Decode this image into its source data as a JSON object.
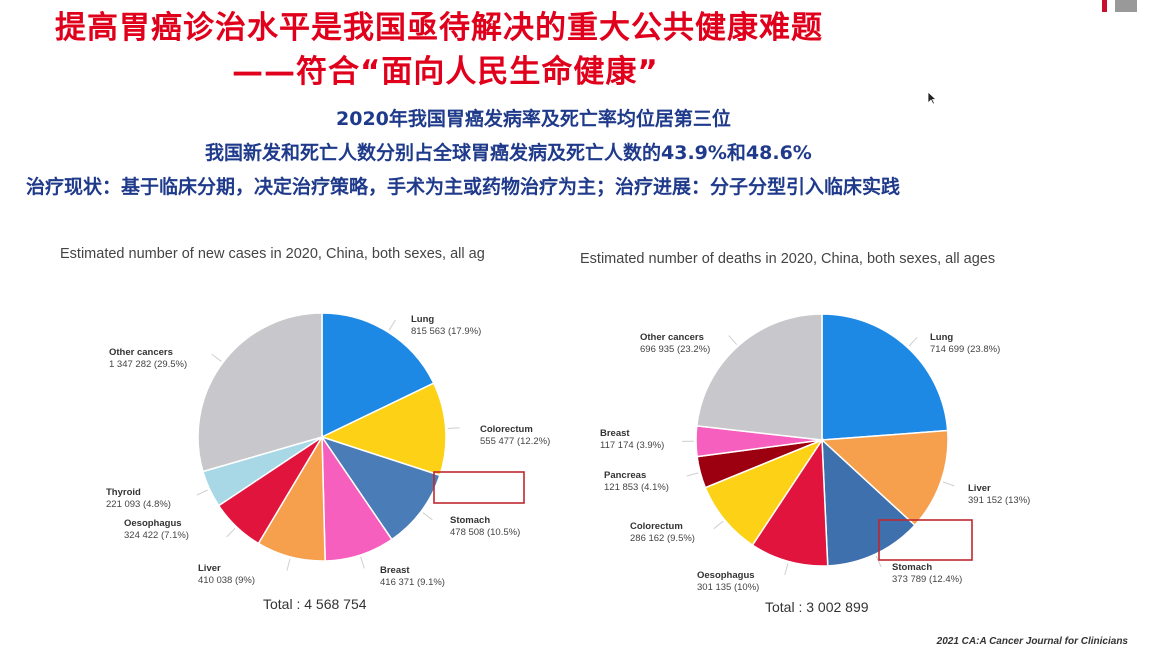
{
  "slide": {
    "title_line1": "提高胃癌诊治水平是我国亟待解决的重大公共健康难题",
    "title_line2": "——符合“面向人民生命健康”",
    "subtitle1": "2020年我国胃癌发病率及死亡率均位居第三位",
    "subtitle2": "我国新发和死亡人数分别占全球胃癌发病及死亡人数的43.9%和48.6%",
    "subtitle3": "治疗现状：基于临床分期，决定治疗策略，手术为主或药物治疗为主；治疗进展：分子分型引入临床实践",
    "source": "2021 CA:A Cancer Journal for Clinicians",
    "logo_colors": [
      "#c8102e",
      "#999999"
    ]
  },
  "chart_data": [
    {
      "type": "pie",
      "title": "Estimated number of new cases in 2020, China, both sexes, all ag",
      "total_label": "Total : 4 568 754",
      "highlight": "Stomach",
      "slices": [
        {
          "name": "Lung",
          "value_label": "815 563 (17.9%)",
          "value": 815563,
          "percent": 17.9,
          "color": "#1e88e5"
        },
        {
          "name": "Colorectum",
          "value_label": "555 477 (12.2%)",
          "value": 555477,
          "percent": 12.2,
          "color": "#fcd116"
        },
        {
          "name": "Stomach",
          "value_label": "478 508 (10.5%)",
          "value": 478508,
          "percent": 10.5,
          "color": "#4a7db8"
        },
        {
          "name": "Breast",
          "value_label": "416 371 (9.1%)",
          "value": 416371,
          "percent": 9.1,
          "color": "#f75fbf"
        },
        {
          "name": "Liver",
          "value_label": "410 038 (9%)",
          "value": 410038,
          "percent": 9.0,
          "color": "#f6a04d"
        },
        {
          "name": "Oesophagus",
          "value_label": "324 422 (7.1%)",
          "value": 324422,
          "percent": 7.1,
          "color": "#e0143c"
        },
        {
          "name": "Thyroid",
          "value_label": "221 093 (4.8%)",
          "value": 221093,
          "percent": 4.8,
          "color": "#a8d8e6"
        },
        {
          "name": "Other cancers",
          "value_label": "1 347 282 (29.5%)",
          "value": 1347282,
          "percent": 29.5,
          "color": "#c8c8cc"
        }
      ]
    },
    {
      "type": "pie",
      "title": "Estimated number of deaths in 2020, China, both sexes, all ages",
      "total_label": "Total : 3 002 899",
      "highlight": "Stomach",
      "slices": [
        {
          "name": "Lung",
          "value_label": "714 699 (23.8%)",
          "value": 714699,
          "percent": 23.8,
          "color": "#1e88e5"
        },
        {
          "name": "Liver",
          "value_label": "391 152 (13%)",
          "value": 391152,
          "percent": 13.0,
          "color": "#f6a04d"
        },
        {
          "name": "Stomach",
          "value_label": "373 789 (12.4%)",
          "value": 373789,
          "percent": 12.4,
          "color": "#3d70ad"
        },
        {
          "name": "Oesophagus",
          "value_label": "301 135 (10%)",
          "value": 301135,
          "percent": 10.0,
          "color": "#e0143c"
        },
        {
          "name": "Colorectum",
          "value_label": "286 162 (9.5%)",
          "value": 286162,
          "percent": 9.5,
          "color": "#fcd116"
        },
        {
          "name": "Pancreas",
          "value_label": "121 853 (4.1%)",
          "value": 121853,
          "percent": 4.1,
          "color": "#9c0010"
        },
        {
          "name": "Breast",
          "value_label": "117 174 (3.9%)",
          "value": 117174,
          "percent": 3.9,
          "color": "#f75fbf"
        },
        {
          "name": "Other cancers",
          "value_label": "696 935 (23.2%)",
          "value": 696935,
          "percent": 23.2,
          "color": "#c8c8cc"
        }
      ]
    }
  ]
}
